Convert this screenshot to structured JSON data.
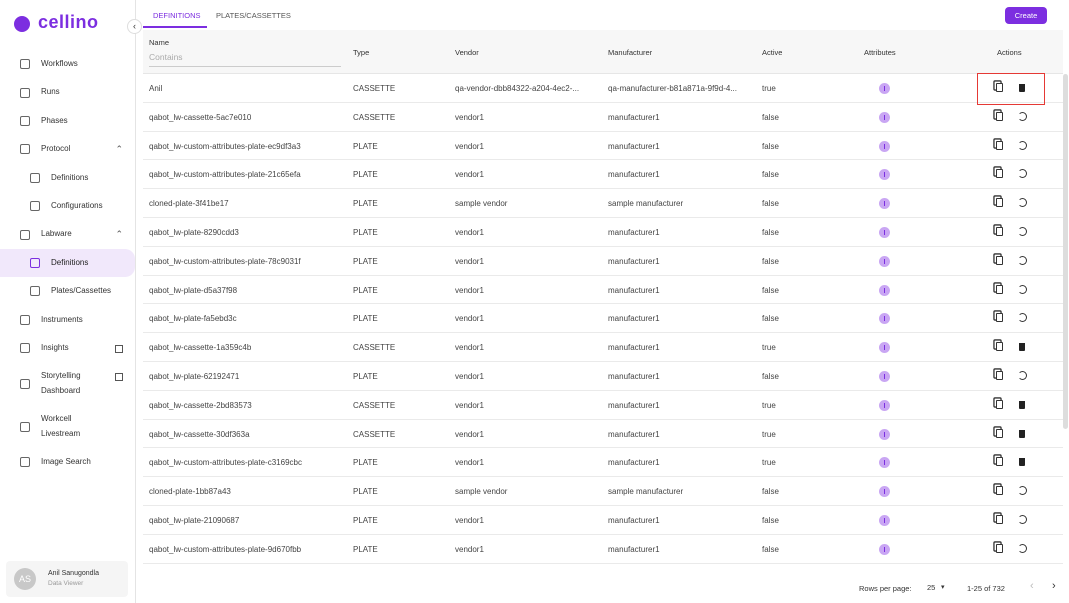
{
  "sidebar": {
    "logo": "cellino",
    "nav": [
      {
        "label": "Workflows"
      },
      {
        "label": "Runs"
      },
      {
        "label": "Phases"
      },
      {
        "label": "Protocol",
        "children": [
          {
            "label": "Definitions"
          },
          {
            "label": "Configurations"
          }
        ]
      },
      {
        "label": "Labware",
        "children": [
          {
            "label": "Definitions"
          },
          {
            "label": "Plates/Cassettes"
          }
        ]
      },
      {
        "label": "Instruments"
      },
      {
        "label": "Insights"
      },
      {
        "label": "Storytelling Dashboard"
      },
      {
        "label": "Workcell Livestream"
      },
      {
        "label": "Image Search"
      }
    ],
    "user": {
      "initials": "AS",
      "name": "Anil Sanugondla",
      "role": "Data Viewer"
    }
  },
  "tabs": [
    "DEFINITIONS",
    "PLATES/CASSETTES"
  ],
  "create_button": "Create",
  "table": {
    "columns": [
      "Name",
      "Type",
      "Vendor",
      "Manufacturer",
      "Active",
      "Attributes",
      "Actions"
    ],
    "filter_placeholder": "Contains",
    "rows": [
      [
        "Anil",
        "CASSETTE",
        "qa-vendor-dbb84322-a204-4ec2-...",
        "qa-manufacturer-b81a871a-9f9d-4...",
        "true"
      ],
      [
        "qabot_lw-cassette-5ac7e010",
        "CASSETTE",
        "vendor1",
        "manufacturer1",
        "false"
      ],
      [
        "qabot_lw-custom-attributes-plate-ec9df3a3",
        "PLATE",
        "vendor1",
        "manufacturer1",
        "false"
      ],
      [
        "qabot_lw-custom-attributes-plate-21c65efa",
        "PLATE",
        "vendor1",
        "manufacturer1",
        "false"
      ],
      [
        "cloned-plate-3f41be17",
        "PLATE",
        "sample vendor",
        "sample manufacturer",
        "false"
      ],
      [
        "qabot_lw-plate-8290cdd3",
        "PLATE",
        "vendor1",
        "manufacturer1",
        "false"
      ],
      [
        "qabot_lw-custom-attributes-plate-78c9031f",
        "PLATE",
        "vendor1",
        "manufacturer1",
        "false"
      ],
      [
        "qabot_lw-plate-d5a37f98",
        "PLATE",
        "vendor1",
        "manufacturer1",
        "false"
      ],
      [
        "qabot_lw-plate-fa5ebd3c",
        "PLATE",
        "vendor1",
        "manufacturer1",
        "false"
      ],
      [
        "qabot_lw-cassette-1a359c4b",
        "CASSETTE",
        "vendor1",
        "manufacturer1",
        "true"
      ],
      [
        "qabot_lw-plate-62192471",
        "PLATE",
        "vendor1",
        "manufacturer1",
        "false"
      ],
      [
        "qabot_lw-cassette-2bd83573",
        "CASSETTE",
        "vendor1",
        "manufacturer1",
        "true"
      ],
      [
        "qabot_lw-cassette-30df363a",
        "CASSETTE",
        "vendor1",
        "manufacturer1",
        "true"
      ],
      [
        "qabot_lw-custom-attributes-plate-c3169cbc",
        "PLATE",
        "vendor1",
        "manufacturer1",
        "true"
      ],
      [
        "cloned-plate-1bb87a43",
        "PLATE",
        "sample vendor",
        "sample manufacturer",
        "false"
      ],
      [
        "qabot_lw-plate-21090687",
        "PLATE",
        "vendor1",
        "manufacturer1",
        "false"
      ],
      [
        "qabot_lw-custom-attributes-plate-9d670fbb",
        "PLATE",
        "vendor1",
        "manufacturer1",
        "false"
      ]
    ]
  },
  "pagination": {
    "rows_per_page_label": "Rows per page:",
    "rows_per_page": 25,
    "range": "1-25 of 732"
  }
}
